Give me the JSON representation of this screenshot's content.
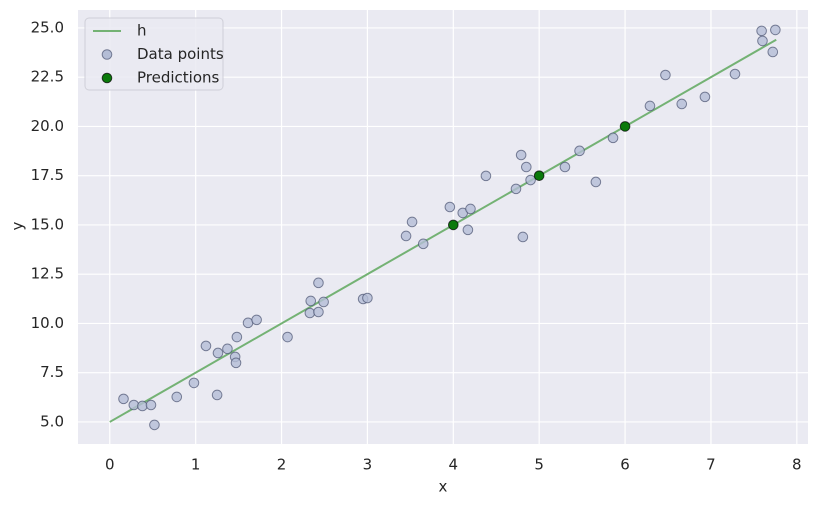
{
  "chart_data": {
    "type": "scatter",
    "xlabel": "x",
    "ylabel": "y",
    "xlim": [
      -0.37,
      8.13
    ],
    "ylim": [
      3.88,
      25.91
    ],
    "xticks": [
      0,
      1,
      2,
      3,
      4,
      5,
      6,
      7,
      8
    ],
    "yticks": [
      {
        "value": 5,
        "label": "5.0"
      },
      {
        "value": 7.5,
        "label": "7.5"
      },
      {
        "value": 10,
        "label": "10.0"
      },
      {
        "value": 12.5,
        "label": "12.5"
      },
      {
        "value": 15,
        "label": "15.0"
      },
      {
        "value": 17.5,
        "label": "17.5"
      },
      {
        "value": 20,
        "label": "20.0"
      },
      {
        "value": 22.5,
        "label": "22.5"
      },
      {
        "value": 25,
        "label": "25.0"
      }
    ],
    "grid": true,
    "legend": "upper left",
    "series": [
      {
        "name": "h",
        "type": "line",
        "color": "#74b274",
        "x": [
          0,
          7.76
        ],
        "y": [
          5,
          24.4
        ]
      },
      {
        "name": "Data points",
        "type": "scatter",
        "color": "#b4bdd6",
        "edgecolor": "#4a5270",
        "x": [
          0.16,
          0.28,
          0.38,
          0.48,
          0.52,
          0.78,
          0.98,
          1.12,
          1.26,
          1.25,
          1.37,
          1.46,
          1.47,
          1.48,
          1.61,
          1.71,
          2.07,
          2.33,
          2.34,
          2.43,
          2.43,
          2.49,
          2.95,
          3.0,
          3.45,
          3.52,
          3.65,
          3.96,
          4.11,
          4.17,
          4.2,
          4.38,
          4.73,
          4.79,
          4.81,
          4.85,
          4.9,
          5.3,
          5.47,
          5.66,
          5.86,
          6.29,
          6.47,
          6.66,
          6.93,
          7.28,
          7.59,
          7.6,
          7.72,
          7.75
        ],
        "y": [
          6.17,
          5.86,
          5.81,
          5.86,
          4.85,
          6.27,
          6.98,
          8.86,
          8.5,
          6.37,
          8.71,
          8.3,
          8.0,
          9.31,
          10.03,
          10.18,
          9.31,
          10.53,
          11.14,
          12.06,
          10.58,
          11.09,
          11.24,
          11.29,
          14.44,
          15.15,
          14.04,
          15.91,
          15.61,
          14.75,
          15.81,
          17.49,
          16.83,
          18.55,
          14.39,
          17.94,
          17.28,
          17.94,
          18.76,
          17.18,
          19.42,
          21.04,
          22.61,
          21.14,
          21.5,
          22.66,
          24.85,
          24.34,
          23.78,
          24.9
        ]
      },
      {
        "name": "Predictions",
        "type": "scatter",
        "color": "#0b7a0b",
        "edgecolor": "#000000",
        "x": [
          4,
          5,
          6
        ],
        "y": [
          15,
          17.5,
          20
        ]
      }
    ]
  }
}
